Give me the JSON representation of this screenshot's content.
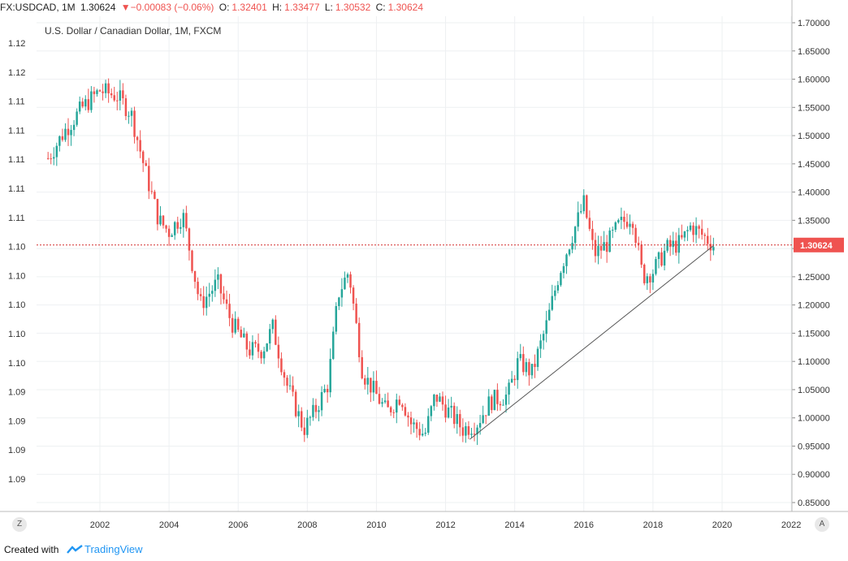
{
  "header": {
    "symbol": "FX:USDCAD, 1M",
    "last": "1.30624",
    "change": "▼−0.00083 (−0.06%)",
    "o_label": "O:",
    "o_value": "1.32401",
    "h_label": "H:",
    "h_value": "1.33477",
    "l_label": "L:",
    "l_value": "1.30532",
    "c_label": "C:",
    "c_value": "1.30624"
  },
  "subtitle": "U.S. Dollar / Canadian Dollar, 1M, FXCM",
  "controls": {
    "timezone_button": "Z",
    "auto_scale_button": "A"
  },
  "footer": {
    "credit": "Created with",
    "brand": "TradingView"
  },
  "colors": {
    "up": "#26a69a",
    "down": "#ef5350",
    "grid": "#eef0f2",
    "price_line": "#d32f2f",
    "trendline": "#555555"
  },
  "chart_data": {
    "type": "candlestick",
    "x_tick_labels": [
      "2002",
      "2004",
      "2006",
      "2008",
      "2010",
      "2012",
      "2014",
      "2016",
      "2018",
      "2020",
      "2022"
    ],
    "x_label_partial": "202",
    "right_axis_labels": [
      "1.70000",
      "1.65000",
      "1.60000",
      "1.55000",
      "1.50000",
      "1.45000",
      "1.40000",
      "1.35000",
      "1.30000",
      "1.25000",
      "1.20000",
      "1.15000",
      "1.10000",
      "1.05000",
      "1.00000",
      "0.95000",
      "0.90000",
      "0.85000"
    ],
    "left_axis_labels": [
      "1.12",
      "1.12",
      "1.11",
      "1.11",
      "1.11",
      "1.11",
      "1.11",
      "1.10",
      "1.10",
      "1.10",
      "1.10",
      "1.10",
      "1.09",
      "1.09",
      "1.09",
      "1.09"
    ],
    "yrange": [
      0.84,
      1.71
    ],
    "xrange": [
      2000.45,
      2022.1
    ],
    "last_price": 1.30624,
    "last_price_label": "1.30624",
    "trendline": [
      [
        2012.7,
        0.962
      ],
      [
        2019.75,
        1.305
      ]
    ],
    "anchors": [
      [
        2000.5,
        1.46
      ],
      [
        2001.0,
        1.51
      ],
      [
        2001.5,
        1.55
      ],
      [
        2002.0,
        1.58
      ],
      [
        2002.5,
        1.57
      ],
      [
        2002.9,
        1.54
      ],
      [
        2003.3,
        1.44
      ],
      [
        2003.7,
        1.35
      ],
      [
        2004.0,
        1.33
      ],
      [
        2004.4,
        1.36
      ],
      [
        2004.9,
        1.2
      ],
      [
        2005.4,
        1.24
      ],
      [
        2005.8,
        1.17
      ],
      [
        2006.3,
        1.12
      ],
      [
        2006.7,
        1.12
      ],
      [
        2007.0,
        1.16
      ],
      [
        2007.4,
        1.06
      ],
      [
        2007.9,
        0.98
      ],
      [
        2008.2,
        1.01
      ],
      [
        2008.6,
        1.06
      ],
      [
        2008.9,
        1.22
      ],
      [
        2009.2,
        1.26
      ],
      [
        2009.6,
        1.08
      ],
      [
        2009.9,
        1.05
      ],
      [
        2010.3,
        1.01
      ],
      [
        2010.7,
        1.04
      ],
      [
        2011.0,
        0.99
      ],
      [
        2011.4,
        0.97
      ],
      [
        2011.7,
        1.04
      ],
      [
        2012.1,
        1.01
      ],
      [
        2012.5,
        0.98
      ],
      [
        2012.9,
        0.99
      ],
      [
        2013.3,
        1.03
      ],
      [
        2013.8,
        1.04
      ],
      [
        2014.1,
        1.1
      ],
      [
        2014.5,
        1.08
      ],
      [
        2014.9,
        1.16
      ],
      [
        2015.3,
        1.26
      ],
      [
        2015.7,
        1.33
      ],
      [
        2016.0,
        1.38
      ],
      [
        2016.3,
        1.29
      ],
      [
        2016.7,
        1.31
      ],
      [
        2017.0,
        1.34
      ],
      [
        2017.4,
        1.36
      ],
      [
        2017.7,
        1.25
      ],
      [
        2018.0,
        1.26
      ],
      [
        2018.4,
        1.3
      ],
      [
        2018.8,
        1.31
      ],
      [
        2019.1,
        1.34
      ],
      [
        2019.5,
        1.32
      ],
      [
        2019.75,
        1.306
      ]
    ],
    "grid": true,
    "legend": "none"
  }
}
